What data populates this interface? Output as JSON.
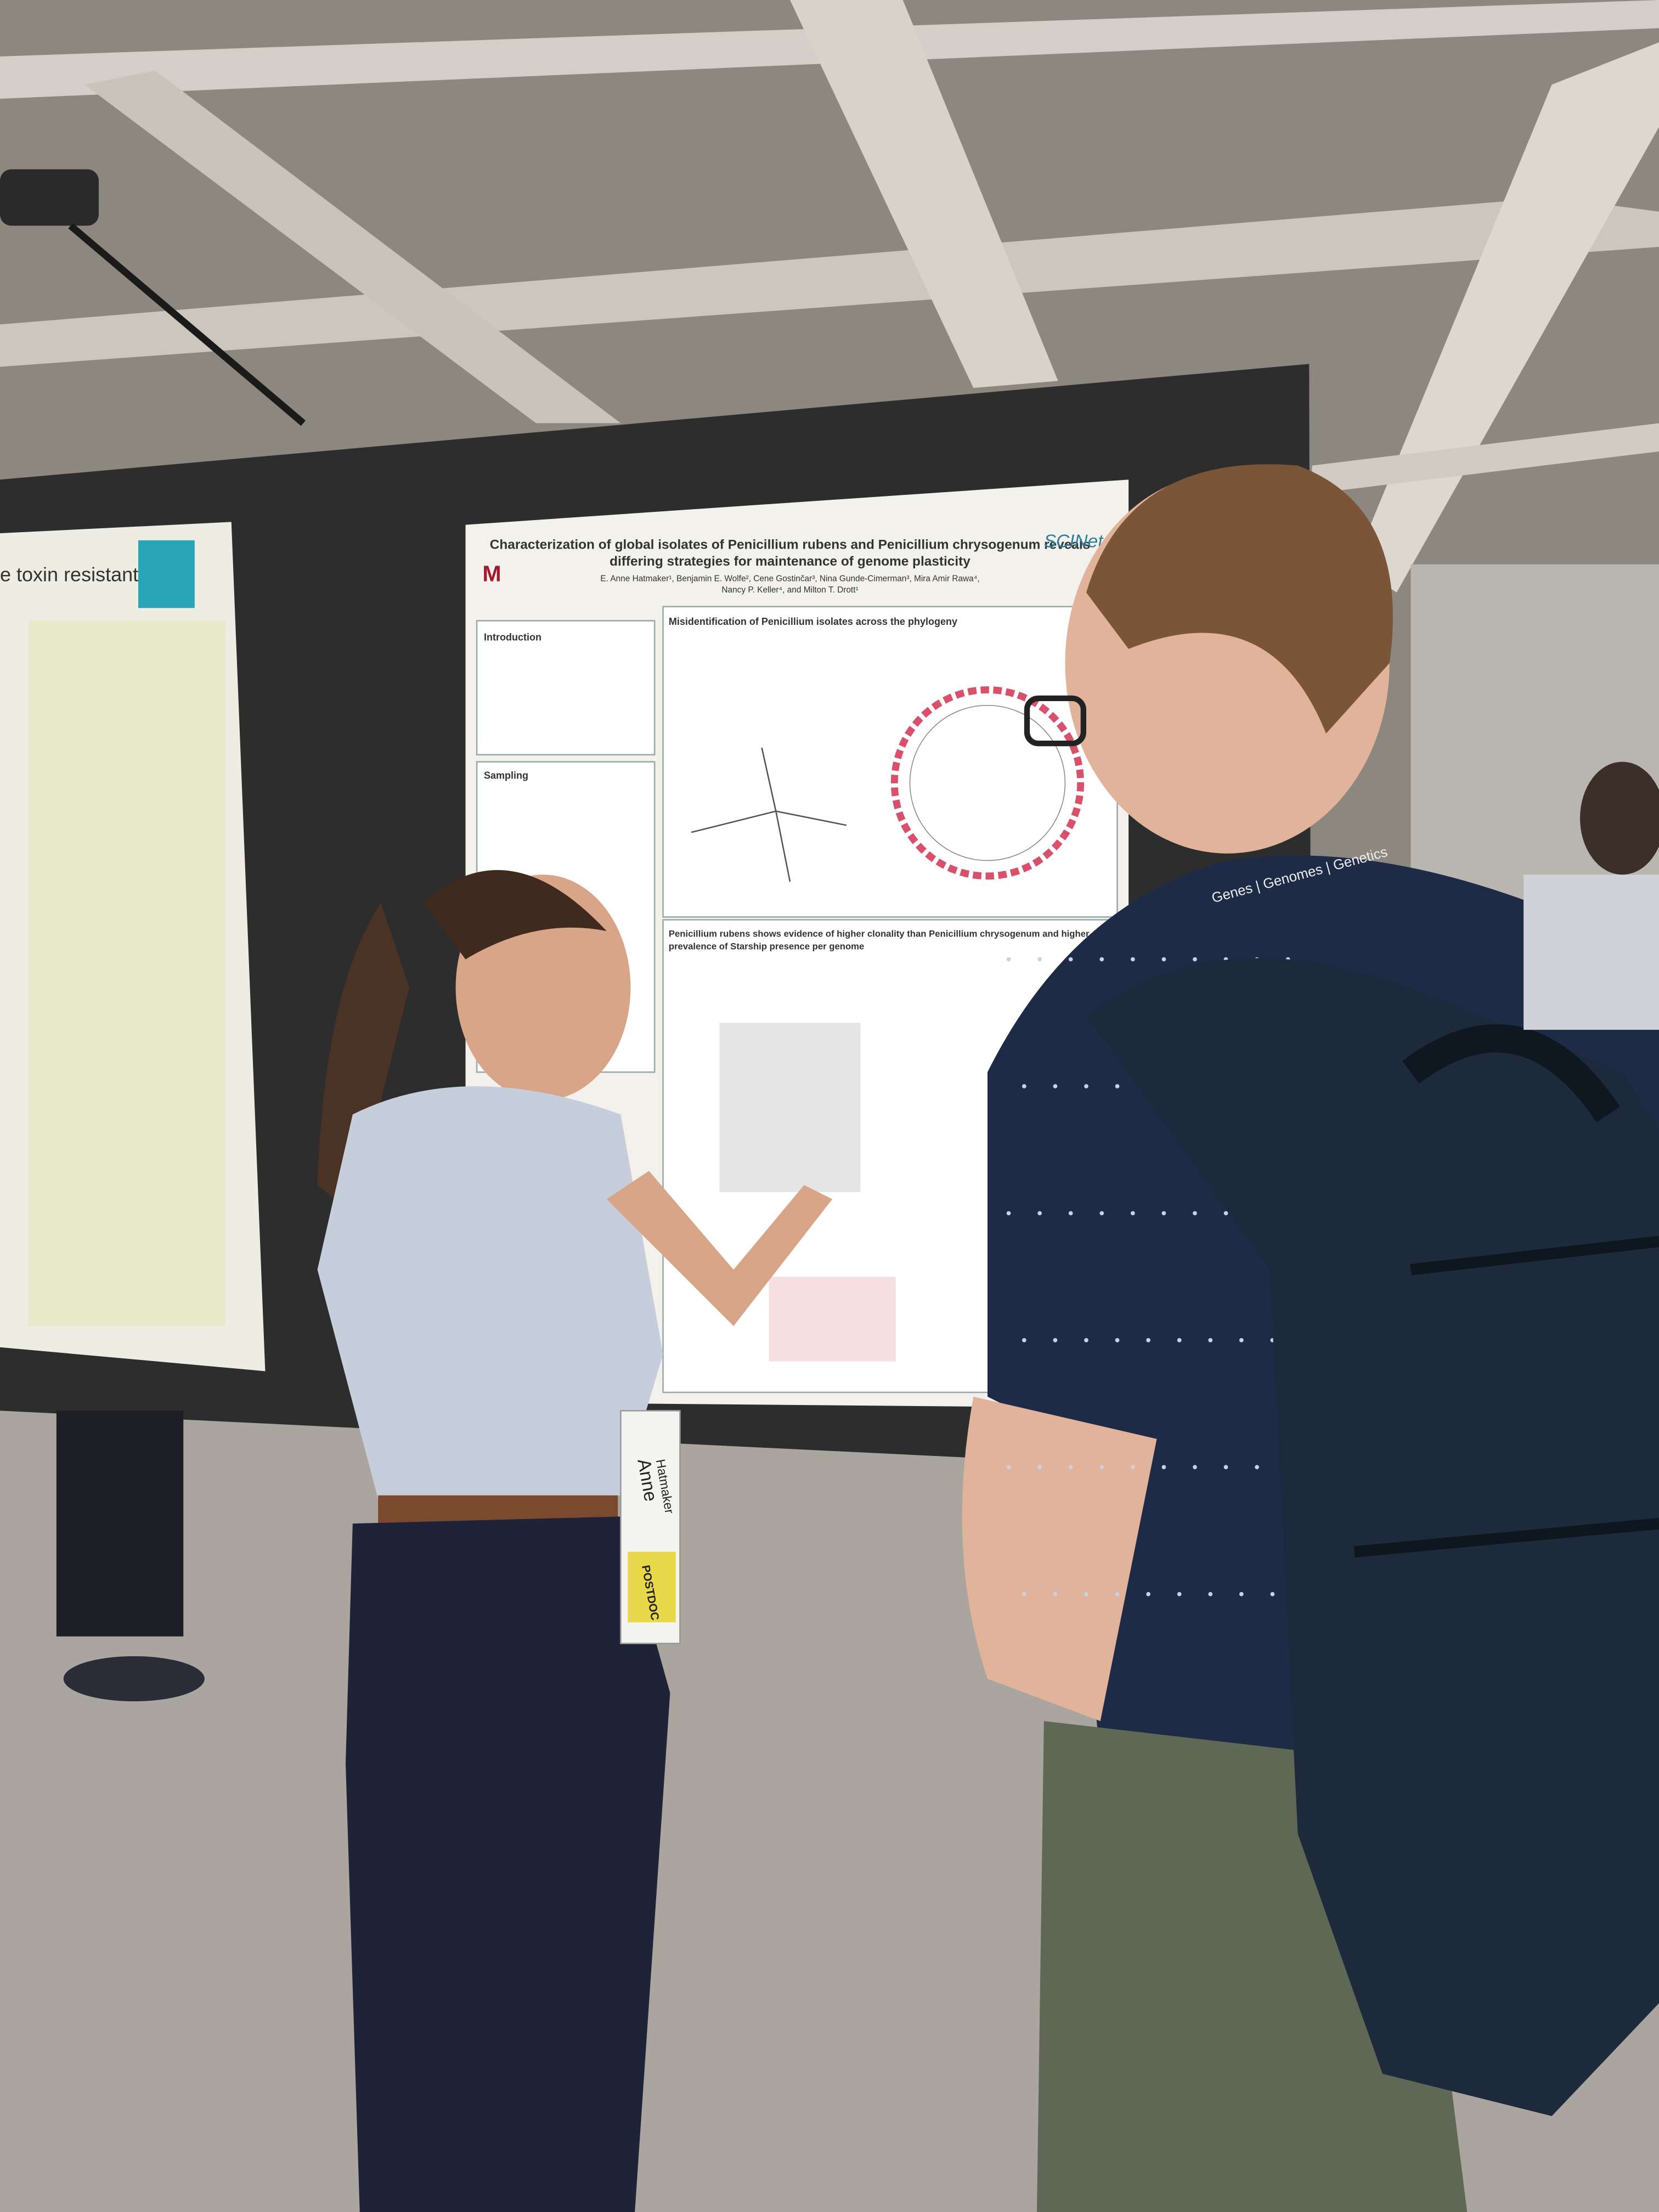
{
  "left_poster": {
    "title_fragment": "e toxin resistant"
  },
  "poster": {
    "title": [
      "Characterization of global isolates of Penicillium rubens and Penicillium chrysogenum reveals",
      "differing strategies for maintenance of genome plasticity"
    ],
    "authors": [
      "E. Anne Hatmaker¹, Benjamin E. Wolfe², Cene Gostinčar³, Nina Gunde-Cimerman³, Mira Amir Rawa⁴,",
      "Nancy P. Keller⁴, and Milton T. Drott¹"
    ],
    "logo": "SCINet",
    "sections": [
      "Introduction",
      "Sampling",
      "Misidentification of Penicillium isolates across the phylogeny",
      "Penicillium rubens shows evidence of higher clonality than Penicillium chrysogenum and higher",
      "prevalence of Starship presence per genome"
    ]
  },
  "badge": {
    "name": [
      "Anne",
      "Hatmaker"
    ],
    "role": "POSTDOC"
  },
  "lanyard": "Genes | Genomes | Genetics"
}
